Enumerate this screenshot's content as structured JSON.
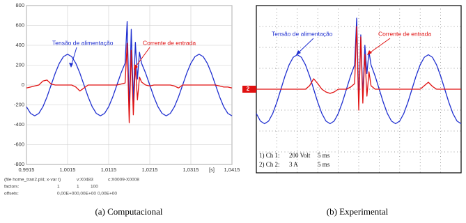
{
  "chart_data": [
    {
      "type": "line",
      "caption": "(a)  Computacional",
      "x_label": "[s]",
      "x": [
        0.9915,
        0.9925,
        0.9935,
        0.9945,
        0.9955,
        0.9965,
        0.9975,
        0.9985,
        0.9995,
        1.0005,
        1.0015,
        1.0025,
        1.0035,
        1.0045,
        1.0055,
        1.0065,
        1.0075,
        1.0085,
        1.0095,
        1.0105,
        1.0115,
        1.0125,
        1.0135,
        1.0145,
        1.0155,
        1.016,
        1.0165,
        1.017,
        1.0175,
        1.018,
        1.0185,
        1.019,
        1.0195,
        1.0205,
        1.0215,
        1.0225,
        1.0235,
        1.0245,
        1.0255,
        1.0265,
        1.0275,
        1.0285,
        1.0295,
        1.0305,
        1.0315,
        1.0325,
        1.0335,
        1.0345,
        1.0355,
        1.0365,
        1.0375,
        1.0385,
        1.0395,
        1.0405,
        1.0415
      ],
      "series": [
        {
          "name": "Tensão de alimentação",
          "color": "#1f2fd0",
          "values": [
            -219,
            -286,
            -310,
            -286,
            -219,
            -119,
            0,
            119,
            219,
            286,
            310,
            286,
            219,
            119,
            0,
            -119,
            -219,
            -286,
            -310,
            -286,
            -219,
            -119,
            0,
            119,
            219,
            640,
            -260,
            560,
            -170,
            430,
            60,
            330,
            219,
            119,
            0,
            -119,
            -219,
            -286,
            -310,
            -286,
            -219,
            -119,
            0,
            119,
            219,
            286,
            310,
            286,
            219,
            119,
            0,
            -119,
            -219,
            -286,
            -310
          ]
        },
        {
          "name": "Corrente de entrada",
          "color": "#e01010",
          "values": [
            -30,
            -20,
            -10,
            0,
            40,
            50,
            10,
            0,
            0,
            0,
            0,
            0,
            -20,
            -60,
            -30,
            0,
            0,
            0,
            0,
            0,
            0,
            0,
            0,
            10,
            20,
            420,
            -380,
            350,
            -300,
            200,
            -150,
            80,
            30,
            0,
            -10,
            0,
            0,
            0,
            0,
            0,
            -10,
            -30,
            0,
            0,
            0,
            0,
            0,
            0,
            0,
            0,
            0,
            -10,
            -20,
            -20,
            -30
          ]
        }
      ],
      "xlim": [
        0.9915,
        1.0415
      ],
      "xticks": [
        {
          "value": 0.9915,
          "label": "0,9915"
        },
        {
          "value": 1.0015,
          "label": "1,0015"
        },
        {
          "value": 1.0115,
          "label": "1,0115"
        },
        {
          "value": 1.0215,
          "label": "1,0215"
        },
        {
          "value": 1.0315,
          "label": "1,0315"
        },
        {
          "value": 1.0415,
          "label": "1,0415"
        }
      ],
      "ylim": [
        -800,
        800
      ],
      "yticks": [
        800,
        600,
        400,
        200,
        0,
        -200,
        -400,
        -600,
        -800
      ],
      "grid": true,
      "footer": [
        [
          "(file home_tran2.pl4; x-var t)",
          "v:X0483",
          "c:X0009-X0008"
        ],
        [
          "factors:",
          "1",
          "1",
          "100"
        ],
        [
          "offsets:",
          "0,00E+00",
          "0,00E+00",
          "0,00E+00"
        ]
      ]
    },
    {
      "type": "scope",
      "caption": "(b)  Experimental",
      "x": [
        0,
        1,
        2,
        3,
        4,
        5,
        6,
        7,
        8,
        9,
        10,
        11,
        12,
        13,
        14,
        15,
        16,
        17,
        18,
        19,
        20,
        21,
        22,
        23,
        24,
        24.5,
        25,
        25.5,
        26,
        26.5,
        27,
        27.5,
        28,
        29,
        30,
        31,
        32,
        33,
        34,
        35,
        36,
        37,
        38,
        39,
        40,
        41,
        42,
        43,
        44,
        45,
        46,
        47,
        48,
        49,
        50
      ],
      "series": [
        {
          "name": "Tensão de alimentação",
          "color": "#1f2fd0",
          "values": [
            -233,
            -305,
            -330,
            -305,
            -233,
            -126,
            0,
            126,
            233,
            305,
            330,
            305,
            233,
            126,
            0,
            -126,
            -233,
            -305,
            -330,
            -305,
            -233,
            -126,
            0,
            126,
            233,
            680,
            -120,
            520,
            -60,
            420,
            150,
            360,
            233,
            126,
            0,
            -126,
            -233,
            -305,
            -330,
            -305,
            -233,
            -126,
            0,
            126,
            233,
            305,
            330,
            305,
            233,
            126,
            0,
            -126,
            -233,
            -305,
            -330
          ]
        },
        {
          "name": "Corrente de entrada",
          "color": "#e01010",
          "axis": "y2",
          "values": [
            0,
            0,
            0,
            0,
            0,
            0,
            0,
            0,
            0,
            0,
            0,
            0,
            0,
            0.5,
            1.5,
            0.8,
            0,
            -0.4,
            -0.6,
            -0.4,
            0,
            0,
            0,
            0.3,
            0.8,
            9,
            -3,
            7.5,
            -2,
            5,
            -1,
            2.5,
            0.5,
            0,
            0,
            0,
            0,
            0,
            0,
            0,
            0,
            0,
            0,
            0,
            0,
            0.5,
            1,
            0.4,
            0,
            0,
            0,
            0,
            0,
            0,
            0
          ]
        }
      ],
      "xlim": [
        0,
        50
      ],
      "ylim": [
        -800,
        800
      ],
      "y2lim": [
        -12,
        12
      ],
      "grid_divisions": [
        10,
        8
      ],
      "channel_marker": "2",
      "info": [
        [
          "1) Ch 1:",
          "200 Volt",
          "5 ms"
        ],
        [
          "2) Ch 2:",
          "3 A",
          "5 ms"
        ]
      ]
    }
  ]
}
